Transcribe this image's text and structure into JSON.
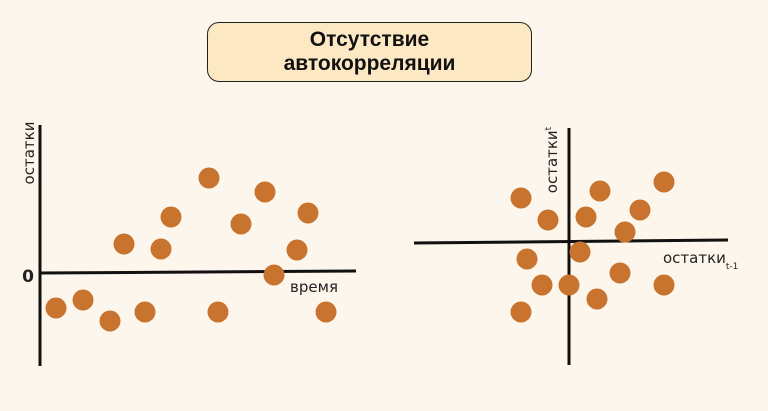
{
  "title": {
    "line1": "Отсутствие",
    "line2": "автокорреляции"
  },
  "colors": {
    "background": "#fdf6ec",
    "title_box": "#fde8c4",
    "point": "#c8742e",
    "axis": "#111111"
  },
  "left_plot": {
    "y_label": "остатки",
    "x_label": "время",
    "zero_label": "0"
  },
  "right_plot": {
    "y_label": "остатки",
    "y_label_sub": "t",
    "x_label": "остатки",
    "x_label_sub": "t-1"
  }
}
